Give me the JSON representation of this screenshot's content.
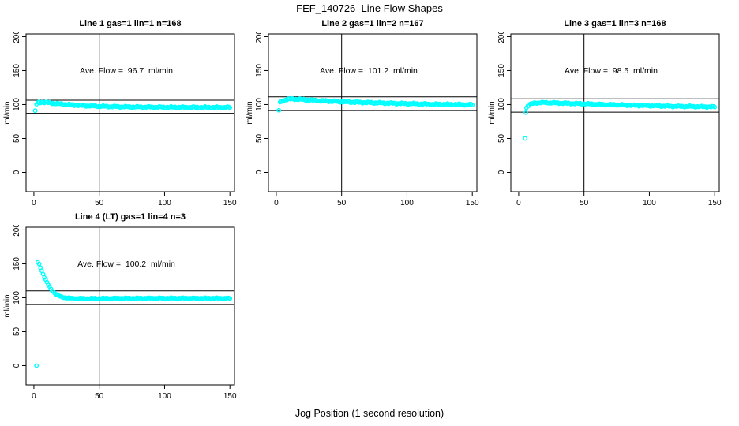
{
  "page": {
    "main_title": "FEF_140726  Line Flow Shapes",
    "x_axis_label": "Jog Position (1 second resolution)",
    "background_color": "#FFFFFF",
    "axis_color": "#000000"
  },
  "chart_data": [
    {
      "type": "scatter",
      "title": "Line 1 gas=1 lin=1 n=168",
      "annotation": "Ave. Flow =  96.7  ml/min",
      "ave_flow_ml_min": 96.7,
      "n": 168,
      "ylabel": "ml/min",
      "xticks": [
        0,
        50,
        100,
        150
      ],
      "yticks": [
        0,
        50,
        100,
        150,
        200
      ],
      "xlim": [
        -6,
        153.5
      ],
      "ylim": [
        -28.5,
        204
      ],
      "vline_x": 50,
      "hlines": [
        106.4,
        87.0
      ],
      "marker": {
        "shape": "open-circle",
        "color": "#00FFFF"
      },
      "outliers": [
        [
          1,
          91
        ]
      ],
      "profile": [
        [
          2,
          100.5
        ],
        [
          3,
          102.5
        ],
        [
          4,
          103.2
        ],
        [
          6,
          103.6
        ],
        [
          10,
          102.9
        ],
        [
          15,
          101.9
        ],
        [
          20,
          100.9
        ],
        [
          25,
          100.1
        ],
        [
          30,
          99.4
        ],
        [
          40,
          98.3
        ],
        [
          50,
          97.5
        ],
        [
          60,
          97.0
        ],
        [
          80,
          96.4
        ],
        [
          100,
          96.1
        ],
        [
          120,
          95.9
        ],
        [
          150,
          95.8
        ]
      ],
      "band_halfwidth": 1.3,
      "x_step": 1,
      "x_end": 150
    },
    {
      "type": "scatter",
      "title": "Line 2 gas=1 lin=2 n=167",
      "annotation": "Ave. Flow =  101.2  ml/min",
      "ave_flow_ml_min": 101.2,
      "n": 167,
      "ylabel": "ml/min",
      "xticks": [
        0,
        50,
        100,
        150
      ],
      "yticks": [
        0,
        50,
        100,
        150,
        200
      ],
      "xlim": [
        -6,
        153.5
      ],
      "ylim": [
        -28.5,
        204
      ],
      "vline_x": 50,
      "hlines": [
        111.3,
        91.1
      ],
      "marker": {
        "shape": "open-circle",
        "color": "#00FFFF"
      },
      "outliers": [
        [
          2,
          91.5
        ]
      ],
      "profile": [
        [
          3,
          103.0
        ],
        [
          5,
          105.5
        ],
        [
          8,
          107.5
        ],
        [
          12,
          108.2
        ],
        [
          18,
          107.6
        ],
        [
          25,
          106.6
        ],
        [
          30,
          106.0
        ],
        [
          40,
          105.0
        ],
        [
          50,
          104.2
        ],
        [
          60,
          103.4
        ],
        [
          80,
          102.3
        ],
        [
          100,
          101.3
        ],
        [
          120,
          100.5
        ],
        [
          150,
          99.8
        ]
      ],
      "band_halfwidth": 1.3,
      "x_step": 1,
      "x_end": 150
    },
    {
      "type": "scatter",
      "title": "Line 3 gas=1 lin=3 n=168",
      "annotation": "Ave. Flow =  98.5  ml/min",
      "ave_flow_ml_min": 98.5,
      "n": 168,
      "ylabel": "ml/min",
      "xticks": [
        0,
        50,
        100,
        150
      ],
      "yticks": [
        0,
        50,
        100,
        150,
        200
      ],
      "xlim": [
        -6,
        153.5
      ],
      "ylim": [
        -28.5,
        204
      ],
      "vline_x": 50,
      "hlines": [
        108.4,
        88.7
      ],
      "marker": {
        "shape": "open-circle",
        "color": "#00FFFF"
      },
      "outliers": [
        [
          5,
          50
        ],
        [
          5.5,
          88
        ]
      ],
      "profile": [
        [
          6,
          95.5
        ],
        [
          7,
          98.0
        ],
        [
          9,
          100.5
        ],
        [
          12,
          102.0
        ],
        [
          16,
          102.9
        ],
        [
          25,
          102.6
        ],
        [
          40,
          101.6
        ],
        [
          50,
          101.1
        ],
        [
          60,
          100.4
        ],
        [
          80,
          99.3
        ],
        [
          100,
          98.3
        ],
        [
          120,
          97.4
        ],
        [
          150,
          96.6
        ]
      ],
      "band_halfwidth": 1.2,
      "x_step": 1,
      "x_end": 150
    },
    {
      "type": "scatter",
      "title": "Line 4 (LT) gas=1 lin=4 n=3",
      "annotation": "Ave. Flow =  100.2  ml/min",
      "ave_flow_ml_min": 100.2,
      "n": 3,
      "ylabel": "ml/min",
      "xticks": [
        0,
        50,
        100,
        150
      ],
      "yticks": [
        0,
        50,
        100,
        150,
        200
      ],
      "xlim": [
        -6,
        153.5
      ],
      "ylim": [
        -28.5,
        204
      ],
      "vline_x": 50,
      "hlines": [
        110.2,
        90.2
      ],
      "marker": {
        "shape": "open-circle",
        "color": "#00FFFF"
      },
      "outliers": [
        [
          2,
          0
        ]
      ],
      "profile": [
        [
          3,
          152.0
        ],
        [
          4,
          149.5
        ],
        [
          5,
          145.0
        ],
        [
          6,
          140.0
        ],
        [
          7,
          135.0
        ],
        [
          8,
          130.5
        ],
        [
          9,
          126.5
        ],
        [
          10,
          122.5
        ],
        [
          11,
          119.0
        ],
        [
          12,
          115.8
        ],
        [
          13,
          113.0
        ],
        [
          14,
          110.6
        ],
        [
          15,
          108.6
        ],
        [
          16,
          106.8
        ],
        [
          17,
          105.2
        ],
        [
          18,
          103.9
        ],
        [
          20,
          102.0
        ],
        [
          22,
          100.8
        ],
        [
          25,
          99.8
        ],
        [
          30,
          99.0
        ],
        [
          40,
          98.8
        ],
        [
          50,
          99.0
        ],
        [
          70,
          99.2
        ],
        [
          100,
          99.3
        ],
        [
          150,
          99.2
        ]
      ],
      "band_halfwidth": 0.9,
      "x_step": 1,
      "x_end": 150
    }
  ]
}
